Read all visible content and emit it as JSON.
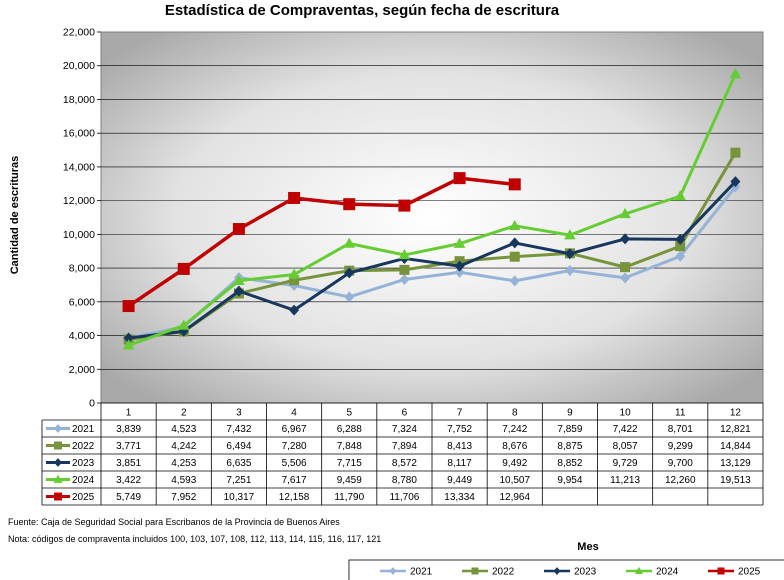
{
  "chart_data": {
    "type": "line",
    "title": "Estadística de Compraventas, según fecha de escritura",
    "ylabel": "Cantidad de escrituras",
    "xlabel": "Mes",
    "ylim": [
      0,
      22000
    ],
    "yticks": [
      "0",
      "2,000",
      "4,000",
      "6,000",
      "8,000",
      "10,000",
      "12,000",
      "14,000",
      "16,000",
      "18,000",
      "20,000",
      "22,000"
    ],
    "categories": [
      "1",
      "2",
      "3",
      "4",
      "5",
      "6",
      "7",
      "8",
      "9",
      "10",
      "11",
      "12"
    ],
    "grid": "horizontal",
    "legend_position": "bottom",
    "series": [
      {
        "name": "2021",
        "color": "#95b3d7",
        "marker": "diamond",
        "values": [
          3839,
          4523,
          7432,
          6967,
          6288,
          7324,
          7752,
          7242,
          7859,
          7422,
          8701,
          12821
        ],
        "labels": [
          "3,839",
          "4,523",
          "7,432",
          "6,967",
          "6,288",
          "7,324",
          "7,752",
          "7,242",
          "7,859",
          "7,422",
          "8,701",
          "12,821"
        ]
      },
      {
        "name": "2022",
        "color": "#77933c",
        "marker": "square",
        "values": [
          3771,
          4242,
          6494,
          7280,
          7848,
          7894,
          8413,
          8676,
          8875,
          8057,
          9299,
          14844
        ],
        "labels": [
          "3,771",
          "4,242",
          "6,494",
          "7,280",
          "7,848",
          "7,894",
          "8,413",
          "8,676",
          "8,875",
          "8,057",
          "9,299",
          "14,844"
        ]
      },
      {
        "name": "2023",
        "color": "#17375e",
        "marker": "diamond",
        "values": [
          3851,
          4253,
          6635,
          5506,
          7715,
          8572,
          8117,
          9492,
          8852,
          9729,
          9700,
          13129
        ],
        "labels": [
          "3,851",
          "4,253",
          "6,635",
          "5,506",
          "7,715",
          "8,572",
          "8,117",
          "9,492",
          "8,852",
          "9,729",
          "9,700",
          "13,129"
        ]
      },
      {
        "name": "2024",
        "color": "#66cc33",
        "marker": "triangle",
        "values": [
          3422,
          4593,
          7251,
          7617,
          9459,
          8780,
          9449,
          10507,
          9954,
          11213,
          12260,
          19513
        ],
        "labels": [
          "3,422",
          "4,593",
          "7,251",
          "7,617",
          "9,459",
          "8,780",
          "9,449",
          "10,507",
          "9,954",
          "11,213",
          "12,260",
          "19,513"
        ]
      },
      {
        "name": "2025",
        "color": "#c00000",
        "marker": "square",
        "values": [
          5749,
          7952,
          10317,
          12158,
          11790,
          11706,
          13334,
          12964,
          null,
          null,
          null,
          null
        ],
        "labels": [
          "5,749",
          "7,952",
          "10,317",
          "12,158",
          "11,790",
          "11,706",
          "13,334",
          "12,964",
          "",
          "",
          "",
          ""
        ]
      }
    ]
  },
  "notes": {
    "source": "Fuente: Caja de Seguridad Social para Escribanos de la Provincia de Buenos Aires",
    "codes": "Nota: códigos de compraventa incluidos 100, 103, 107, 108, 112, 113, 114, 115, 116, 117, 121"
  }
}
